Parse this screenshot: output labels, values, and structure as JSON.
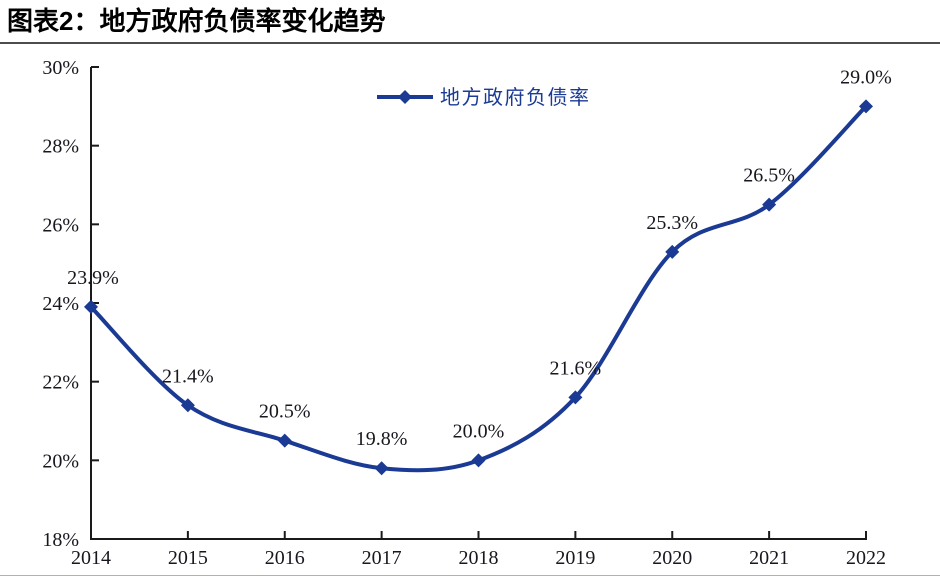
{
  "page": {
    "title": "图表2：地方政府负债率变化趋势"
  },
  "chart_data": {
    "type": "line",
    "title": "图表2：地方政府负债率变化趋势",
    "categories": [
      "2014",
      "2015",
      "2016",
      "2017",
      "2018",
      "2019",
      "2020",
      "2021",
      "2022"
    ],
    "series": [
      {
        "name": "地方政府负债率",
        "values": [
          23.9,
          21.4,
          20.5,
          19.8,
          20.0,
          21.6,
          25.3,
          26.5,
          29.0
        ],
        "data_labels": [
          "23.9%",
          "21.4%",
          "20.5%",
          "19.8%",
          "20.0%",
          "21.6%",
          "25.3%",
          "26.5%",
          "29.0%"
        ]
      }
    ],
    "ylim": [
      18,
      30
    ],
    "ytick_step": 2,
    "ytick_labels": [
      "18%",
      "20%",
      "22%",
      "24%",
      "26%",
      "28%",
      "30%"
    ],
    "xlabel": "",
    "ylabel": "",
    "grid": false,
    "smooth": true,
    "marker": "diamond",
    "legend_position": "top-center",
    "colors": {
      "series_line": "#1A3A94",
      "marker": "#1A3A94",
      "legend_text": "#1A3A94",
      "axis": "#1A1A1A",
      "tick_label": "#17171F",
      "data_label": "#17171F",
      "title_rule": "#4D4D4D",
      "bottom_rule": "#B0B0B8"
    }
  }
}
